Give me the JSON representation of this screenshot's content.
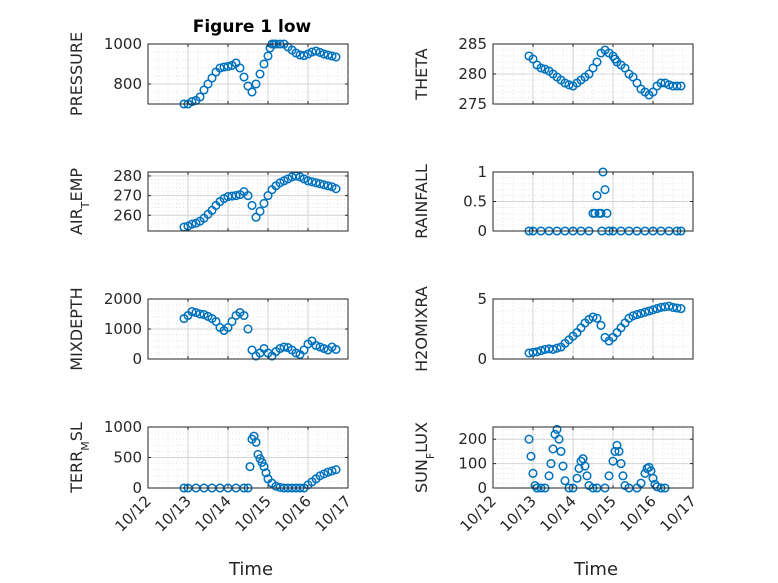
{
  "figure": {
    "title": "Figure 1 low",
    "marker_color": "#0072bd",
    "grid": true,
    "xlabel": "Time",
    "xticks": [
      "10/12",
      "10/13",
      "10/14",
      "10/15",
      "10/16",
      "10/17"
    ],
    "xrange": [
      0,
      5
    ]
  },
  "chart_data": [
    {
      "type": "scatter",
      "ylabel": "PRESSURE",
      "ylim": [
        700,
        1000
      ],
      "yticks": [
        800,
        1000
      ],
      "title": "Figure 1 low",
      "x": [
        0.9,
        1.0,
        1.1,
        1.2,
        1.3,
        1.4,
        1.5,
        1.6,
        1.7,
        1.8,
        1.9,
        2.0,
        2.1,
        2.2,
        2.3,
        2.4,
        2.5,
        2.6,
        2.7,
        2.8,
        2.9,
        3.0,
        3.05,
        3.1,
        3.15,
        3.2,
        3.3,
        3.4,
        3.5,
        3.6,
        3.7,
        3.8,
        3.9,
        4.0,
        4.1,
        4.2,
        4.3,
        4.4,
        4.5,
        4.6,
        4.7
      ],
      "y": [
        690,
        700,
        712,
        718,
        735,
        770,
        800,
        830,
        860,
        880,
        885,
        888,
        893,
        905,
        880,
        835,
        790,
        760,
        800,
        850,
        900,
        940,
        980,
        1005,
        1008,
        1010,
        1008,
        1000,
        985,
        970,
        955,
        945,
        942,
        950,
        960,
        965,
        958,
        950,
        945,
        940,
        935
      ]
    },
    {
      "type": "scatter",
      "ylabel": "THETA",
      "ylim": [
        275,
        285
      ],
      "yticks": [
        275,
        280,
        285
      ],
      "x": [
        0.9,
        1.0,
        1.1,
        1.2,
        1.3,
        1.4,
        1.5,
        1.6,
        1.7,
        1.8,
        1.9,
        2.0,
        2.1,
        2.2,
        2.3,
        2.4,
        2.5,
        2.6,
        2.7,
        2.8,
        2.9,
        3.0,
        3.05,
        3.1,
        3.2,
        3.3,
        3.4,
        3.5,
        3.6,
        3.7,
        3.8,
        3.9,
        4.0,
        4.1,
        4.2,
        4.3,
        4.4,
        4.5,
        4.6,
        4.7
      ],
      "y": [
        283,
        282.5,
        281.5,
        281,
        280.8,
        280.5,
        280,
        279.5,
        279,
        278.5,
        278.2,
        278,
        278.5,
        279,
        279.5,
        280,
        281,
        282,
        283.5,
        284,
        283.5,
        283,
        282.5,
        282,
        281.5,
        281,
        280,
        279.5,
        278.5,
        277.5,
        277,
        276.5,
        277,
        278,
        278.5,
        278.5,
        278.2,
        278,
        278,
        278
      ]
    },
    {
      "type": "scatter",
      "ylabel": "AIR_TEMP",
      "ylim": [
        252,
        282
      ],
      "yticks": [
        260,
        270,
        280
      ],
      "x": [
        0.9,
        1.0,
        1.1,
        1.2,
        1.3,
        1.4,
        1.5,
        1.6,
        1.7,
        1.8,
        1.9,
        2.0,
        2.1,
        2.2,
        2.3,
        2.4,
        2.5,
        2.6,
        2.7,
        2.8,
        2.9,
        3.0,
        3.1,
        3.2,
        3.3,
        3.4,
        3.5,
        3.6,
        3.7,
        3.8,
        3.9,
        4.0,
        4.1,
        4.2,
        4.3,
        4.4,
        4.5,
        4.6,
        4.7
      ],
      "y": [
        254,
        254.5,
        255.5,
        256,
        257,
        258.5,
        260.5,
        262.5,
        265,
        267,
        268.5,
        269.5,
        269.8,
        270,
        270.5,
        272,
        270,
        265,
        259,
        262,
        266,
        270,
        273,
        275,
        276.5,
        277.5,
        278.5,
        279.5,
        280,
        279.5,
        278.5,
        277.5,
        277,
        276.5,
        276,
        275.5,
        275,
        274.5,
        273.5
      ]
    },
    {
      "type": "scatter",
      "ylabel": "RAINFALL",
      "ylim": [
        0,
        1
      ],
      "yticks": [
        0,
        0.5,
        1
      ],
      "x": [
        0.9,
        1.0,
        1.2,
        1.4,
        1.6,
        1.8,
        2.0,
        2.2,
        2.4,
        2.5,
        2.55,
        2.6,
        2.65,
        2.7,
        2.72,
        2.75,
        2.8,
        2.85,
        2.9,
        3.0,
        3.2,
        3.4,
        3.6,
        3.8,
        4.0,
        4.2,
        4.4,
        4.6,
        4.7
      ],
      "y": [
        0,
        0,
        0,
        0,
        0,
        0,
        0,
        0,
        0,
        0.3,
        0.3,
        0.6,
        0.3,
        0.3,
        0,
        1,
        0.7,
        0.3,
        0,
        0,
        0,
        0,
        0,
        0,
        0,
        0,
        0,
        0,
        0
      ]
    },
    {
      "type": "scatter",
      "ylabel": "MIXDEPTH",
      "ylim": [
        0,
        2000
      ],
      "yticks": [
        0,
        1000,
        2000
      ],
      "x": [
        0.9,
        1.0,
        1.1,
        1.2,
        1.3,
        1.4,
        1.5,
        1.6,
        1.7,
        1.8,
        1.9,
        2.0,
        2.1,
        2.2,
        2.3,
        2.4,
        2.5,
        2.6,
        2.7,
        2.8,
        2.9,
        3.0,
        3.1,
        3.2,
        3.3,
        3.4,
        3.5,
        3.6,
        3.7,
        3.8,
        3.9,
        4.0,
        4.1,
        4.2,
        4.3,
        4.4,
        4.5,
        4.6,
        4.7
      ],
      "y": [
        1350,
        1450,
        1580,
        1550,
        1500,
        1480,
        1420,
        1350,
        1250,
        1050,
        950,
        1050,
        1250,
        1450,
        1550,
        1450,
        1000,
        300,
        100,
        200,
        350,
        200,
        100,
        250,
        350,
        400,
        380,
        300,
        200,
        150,
        300,
        500,
        600,
        450,
        400,
        350,
        300,
        400,
        320
      ]
    },
    {
      "type": "scatter",
      "ylabel": "H2OMIXRA",
      "ylim": [
        0,
        5
      ],
      "yticks": [
        0,
        5
      ],
      "x": [
        0.9,
        1.0,
        1.1,
        1.2,
        1.3,
        1.4,
        1.5,
        1.6,
        1.7,
        1.8,
        1.9,
        2.0,
        2.1,
        2.2,
        2.3,
        2.4,
        2.5,
        2.6,
        2.7,
        2.8,
        2.9,
        3.0,
        3.1,
        3.2,
        3.3,
        3.4,
        3.5,
        3.6,
        3.7,
        3.8,
        3.9,
        4.0,
        4.1,
        4.2,
        4.3,
        4.4,
        4.5,
        4.6,
        4.7
      ],
      "y": [
        0.5,
        0.55,
        0.6,
        0.7,
        0.8,
        0.85,
        0.8,
        0.9,
        1.0,
        1.3,
        1.6,
        1.9,
        2.2,
        2.6,
        3.0,
        3.3,
        3.5,
        3.4,
        2.8,
        1.8,
        1.5,
        1.8,
        2.2,
        2.6,
        3.0,
        3.4,
        3.6,
        3.7,
        3.8,
        3.9,
        4.0,
        4.1,
        4.2,
        4.3,
        4.35,
        4.4,
        4.3,
        4.25,
        4.2
      ]
    },
    {
      "type": "scatter",
      "ylabel": "TERR_MSL",
      "ylim": [
        0,
        1000
      ],
      "yticks": [
        0,
        500,
        1000
      ],
      "x": [
        0.9,
        1.0,
        1.2,
        1.4,
        1.6,
        1.8,
        2.0,
        2.2,
        2.4,
        2.5,
        2.55,
        2.6,
        2.65,
        2.7,
        2.75,
        2.8,
        2.85,
        2.9,
        2.95,
        3.0,
        3.1,
        3.2,
        3.3,
        3.4,
        3.5,
        3.6,
        3.7,
        3.8,
        3.9,
        4.0,
        4.1,
        4.2,
        4.3,
        4.4,
        4.5,
        4.6,
        4.7
      ],
      "y": [
        0,
        0,
        0,
        0,
        0,
        0,
        0,
        0,
        0,
        0,
        350,
        800,
        850,
        750,
        550,
        480,
        420,
        350,
        250,
        150,
        80,
        30,
        10,
        0,
        0,
        0,
        0,
        0,
        0,
        50,
        100,
        150,
        200,
        230,
        260,
        280,
        300
      ]
    },
    {
      "type": "scatter",
      "ylabel": "SUN_FLUX",
      "ylim": [
        0,
        250
      ],
      "yticks": [
        0,
        100,
        200
      ],
      "x": [
        0.9,
        0.95,
        1.0,
        1.05,
        1.1,
        1.2,
        1.3,
        1.4,
        1.45,
        1.5,
        1.55,
        1.6,
        1.65,
        1.7,
        1.75,
        1.8,
        1.9,
        2.0,
        2.1,
        2.15,
        2.2,
        2.25,
        2.3,
        2.35,
        2.4,
        2.5,
        2.6,
        2.8,
        2.9,
        3.0,
        3.05,
        3.1,
        3.15,
        3.2,
        3.25,
        3.3,
        3.4,
        3.6,
        3.7,
        3.8,
        3.85,
        3.9,
        3.95,
        4.0,
        4.05,
        4.1,
        4.2,
        4.3
      ],
      "y": [
        200,
        130,
        60,
        10,
        0,
        0,
        0,
        50,
        100,
        160,
        220,
        240,
        200,
        150,
        90,
        30,
        0,
        0,
        40,
        80,
        110,
        120,
        90,
        50,
        10,
        0,
        0,
        0,
        50,
        110,
        150,
        175,
        150,
        100,
        50,
        10,
        0,
        0,
        20,
        60,
        80,
        85,
        70,
        40,
        15,
        5,
        0,
        0
      ]
    }
  ]
}
